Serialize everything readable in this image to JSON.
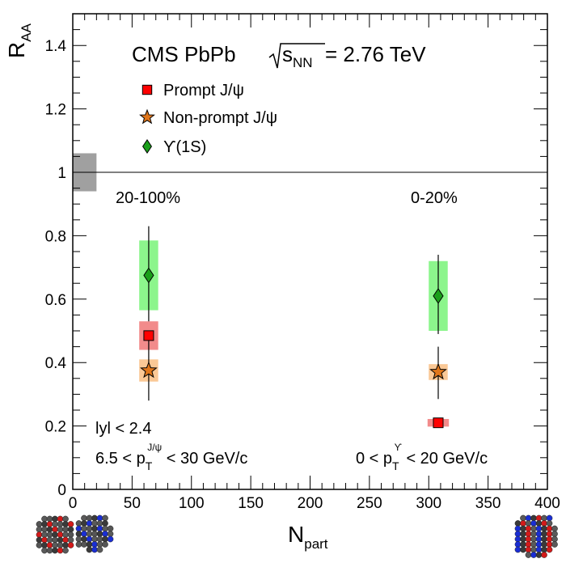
{
  "chart_data": {
    "type": "scatter",
    "header": {
      "pre": "CMS PbPb ",
      "sqrt_s": "s",
      "sqrt_sub": "NN",
      "post": " = 2.76 TeV"
    },
    "xlabel": {
      "main": "N",
      "sub": "part"
    },
    "ylabel": {
      "main": "R",
      "sub": "AA"
    },
    "xlim": [
      0,
      400
    ],
    "ylim": [
      0,
      1.5
    ],
    "x_ticks": [
      0,
      50,
      100,
      150,
      200,
      250,
      300,
      350,
      400
    ],
    "x_tick_labels": [
      "0",
      "50",
      "100",
      "150",
      "200",
      "250",
      "300",
      "350",
      "400"
    ],
    "y_ticks": [
      0,
      0.2,
      0.4,
      0.6,
      0.8,
      1,
      1.2,
      1.4
    ],
    "y_tick_labels": [
      "0",
      "0.2",
      "0.4",
      "0.6",
      "0.8",
      "1",
      "1.2",
      "1.4"
    ],
    "reference_line": 1,
    "global_uncertainty": {
      "x0": 0,
      "x1": 20,
      "ylow": 0.94,
      "yhigh": 1.06,
      "color": "#a0a0a0"
    },
    "legend": {
      "position": "top"
    },
    "series": [
      {
        "name": "Prompt J/ψ",
        "marker": "square",
        "color": "#ff0000",
        "box_color": "#f28b8b",
        "points": [
          {
            "x": 64,
            "y": 0.485,
            "stat_err": [
              0.0,
              0.0
            ],
            "syst": [
              0.44,
              0.53
            ],
            "syst_halfwidth": 8
          },
          {
            "x": 308,
            "y": 0.21,
            "stat_err": [
              0.195,
              0.225
            ],
            "syst": [
              0.198,
              0.222
            ],
            "syst_halfwidth": 9
          }
        ]
      },
      {
        "name": "Non-prompt J/ψ",
        "marker": "star",
        "color": "#e0761b",
        "box_color": "#fac896",
        "points": [
          {
            "x": 64,
            "y": 0.375,
            "stat_err": [
              0.28,
              0.485
            ],
            "syst": [
              0.34,
              0.41
            ],
            "syst_halfwidth": 8
          },
          {
            "x": 308,
            "y": 0.37,
            "stat_err": [
              0.285,
              0.45
            ],
            "syst": [
              0.345,
              0.395
            ],
            "syst_halfwidth": 8
          }
        ]
      },
      {
        "name": "ϒ(1S)",
        "marker": "diamond",
        "color": "#1a9e1a",
        "box_color": "#8cf58c",
        "points": [
          {
            "x": 64,
            "y": 0.675,
            "stat_err": [
              0.53,
              0.83
            ],
            "syst": [
              0.565,
              0.785
            ],
            "syst_halfwidth": 8
          },
          {
            "x": 308,
            "y": 0.61,
            "stat_err": [
              0.49,
              0.74
            ],
            "syst": [
              0.5,
              0.72
            ],
            "syst_halfwidth": 8
          }
        ]
      }
    ],
    "annotations": {
      "centrality_left": "20-100%",
      "centrality_right": "0-20%",
      "rapidity": "lyl < 2.4",
      "pt_left": {
        "pre": "6.5 < p",
        "sub": "T",
        "sup": "J/ψ",
        "post": " < 30 GeV/c"
      },
      "pt_right": {
        "pre": "0 < p",
        "sub": "T",
        "sup": "ϒ",
        "post": " < 20 GeV/c"
      }
    }
  }
}
